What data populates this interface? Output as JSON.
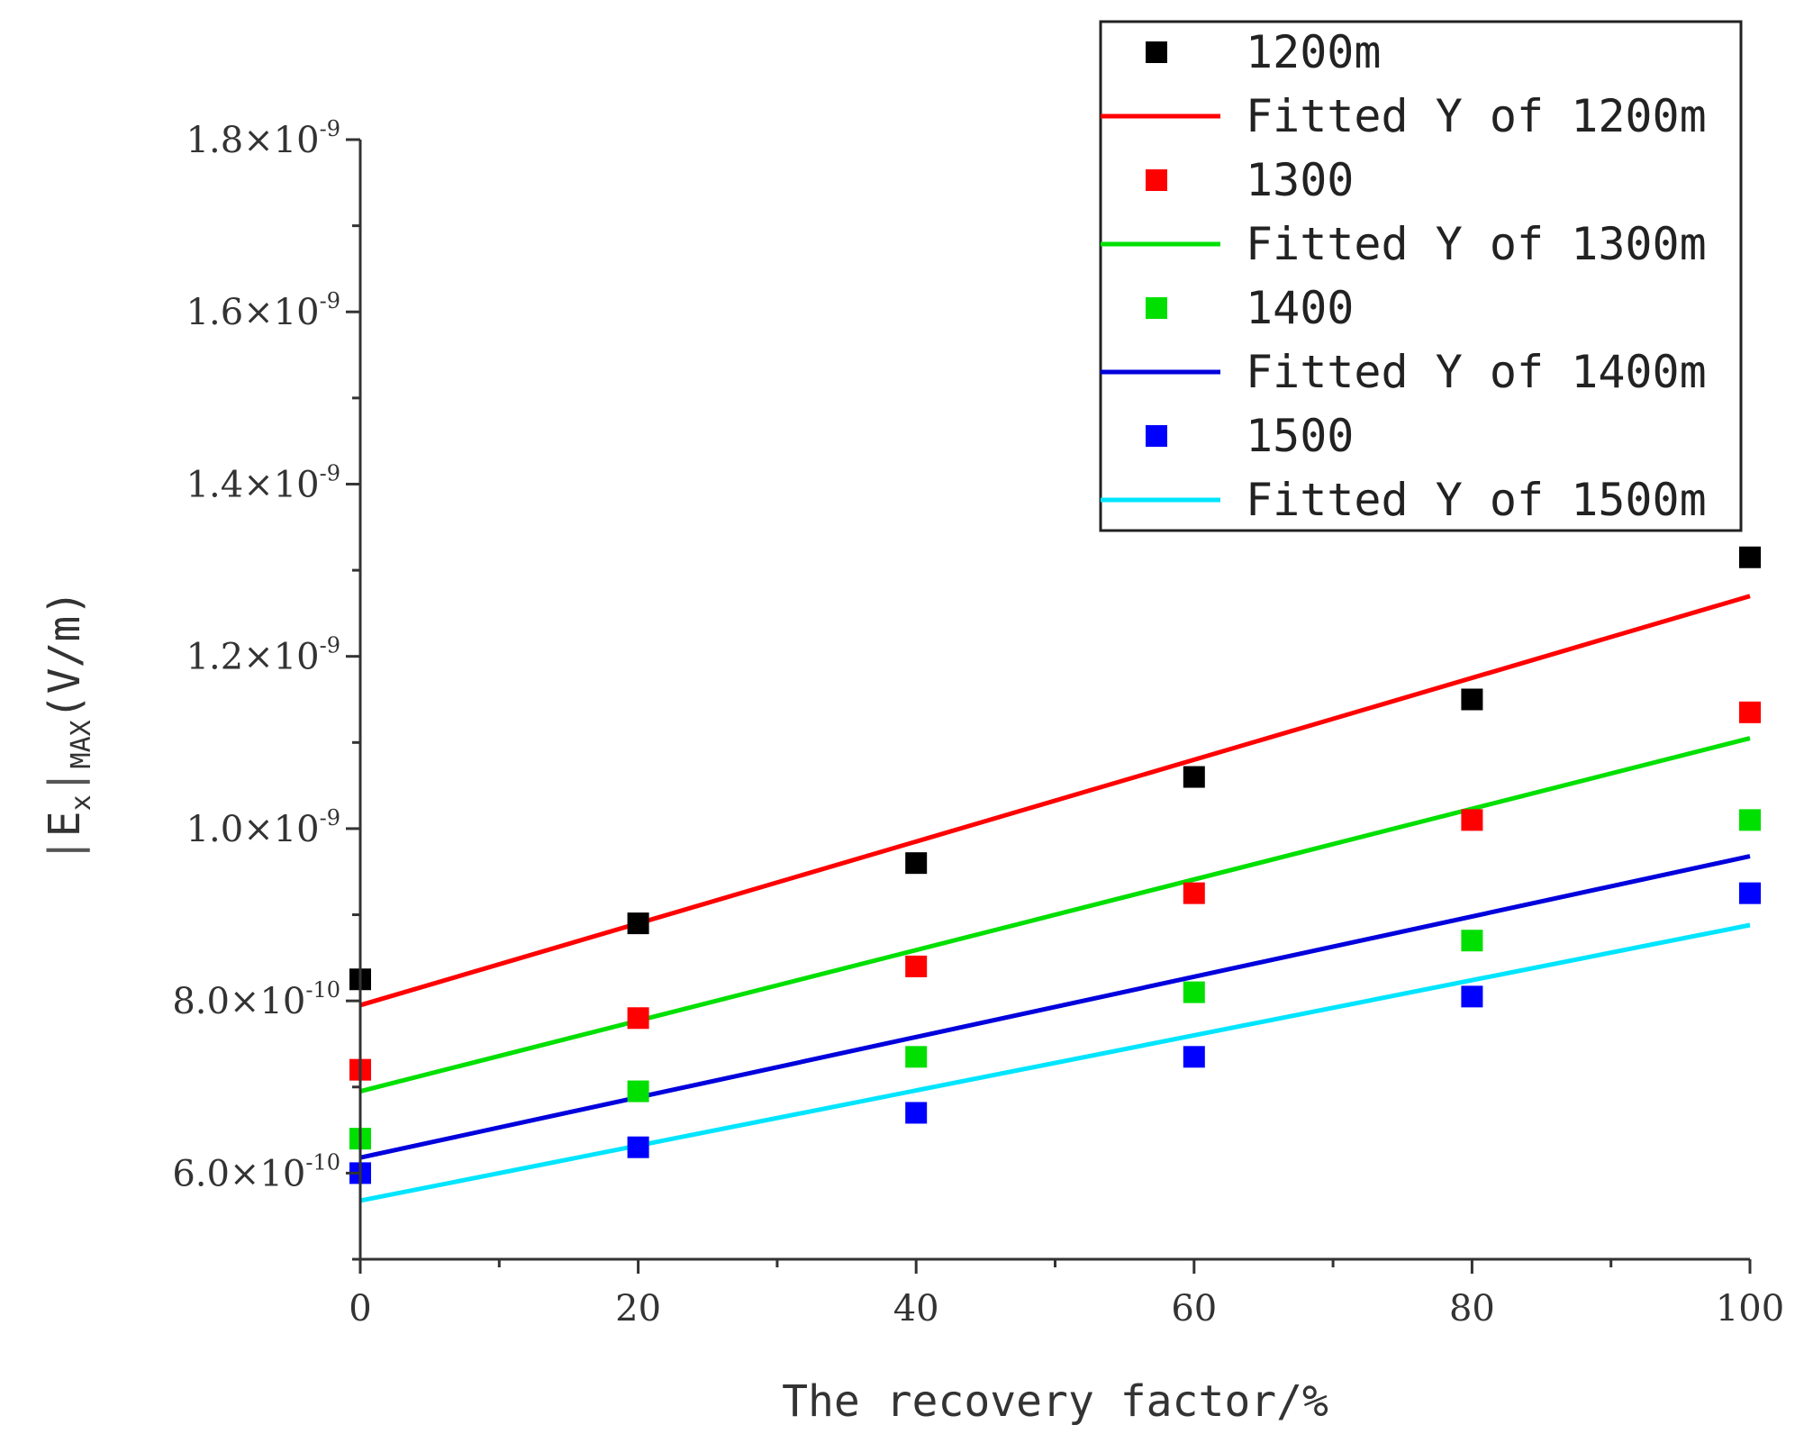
{
  "chart_data": {
    "type": "scatter",
    "title": "",
    "xlabel": "The recovery factor/%",
    "ylabel": {
      "main": "E",
      "sub_x": "x",
      "sub_max": "MAX",
      "unit": "(V/m)"
    },
    "xlim": [
      0,
      100
    ],
    "ylim": [
      5e-10,
      1.8e-09
    ],
    "x_ticks": [
      {
        "value": 0,
        "label": "0"
      },
      {
        "value": 20,
        "label": "20"
      },
      {
        "value": 40,
        "label": "40"
      },
      {
        "value": 60,
        "label": "60"
      },
      {
        "value": 80,
        "label": "80"
      },
      {
        "value": 100,
        "label": "100"
      }
    ],
    "x_minor_ticks": [
      10,
      30,
      50,
      70,
      90
    ],
    "y_ticks": [
      {
        "value": 6e-10,
        "mantissa": "6.0",
        "times": "×",
        "base": "10",
        "exp": "-10"
      },
      {
        "value": 8e-10,
        "mantissa": "8.0",
        "times": "×",
        "base": "10",
        "exp": "-10"
      },
      {
        "value": 1e-09,
        "mantissa": "1.0",
        "times": "×",
        "base": "10",
        "exp": "-9"
      },
      {
        "value": 1.2e-09,
        "mantissa": "1.2",
        "times": "×",
        "base": "10",
        "exp": "-9"
      },
      {
        "value": 1.4e-09,
        "mantissa": "1.4",
        "times": "×",
        "base": "10",
        "exp": "-9"
      },
      {
        "value": 1.6e-09,
        "mantissa": "1.6",
        "times": "×",
        "base": "10",
        "exp": "-9"
      },
      {
        "value": 1.8e-09,
        "mantissa": "1.8",
        "times": "×",
        "base": "10",
        "exp": "-9"
      }
    ],
    "y_minor_ticks": [
      5e-10,
      7e-10,
      9e-10,
      1.1e-09,
      1.3e-09,
      1.5e-09,
      1.7e-09
    ],
    "x": [
      0,
      20,
      40,
      60,
      80,
      100
    ],
    "series": [
      {
        "name": "1200m",
        "color": "#000000",
        "points": [
          8.25e-10,
          8.9e-10,
          9.6e-10,
          1.06e-09,
          1.15e-09,
          1.315e-09
        ],
        "fit": {
          "name": "Fitted Y of 1200m",
          "color": "#ff0000",
          "intercept": 7.95e-10,
          "slope": 4.75e-12
        }
      },
      {
        "name": "1300",
        "color": "#ff0000",
        "points": [
          7.2e-10,
          7.8e-10,
          8.4e-10,
          9.25e-10,
          1.01e-09,
          1.135e-09
        ],
        "fit": {
          "name": "Fitted Y of 1300m",
          "color": "#00e000",
          "intercept": 6.95e-10,
          "slope": 4.1e-12
        }
      },
      {
        "name": "1400",
        "color": "#00e000",
        "points": [
          6.4e-10,
          6.95e-10,
          7.35e-10,
          8.1e-10,
          8.7e-10,
          1.01e-09
        ],
        "fit": {
          "name": "Fitted Y of 1400m",
          "color": "#0000dd",
          "intercept": 6.18e-10,
          "slope": 3.5e-12
        }
      },
      {
        "name": "1500",
        "color": "#0000ff",
        "points": [
          6e-10,
          6.3e-10,
          6.7e-10,
          7.35e-10,
          8.05e-10,
          9.25e-10
        ],
        "fit": {
          "name": "Fitted Y of 1500m",
          "color": "#00e5ff",
          "intercept": 5.68e-10,
          "slope": 3.2e-12
        }
      }
    ],
    "legend": {
      "position": "top-right",
      "entries": [
        {
          "label": "1200m",
          "kind": "marker",
          "color": "#000000"
        },
        {
          "label": "Fitted Y of 1200m",
          "kind": "line",
          "color": "#ff0000"
        },
        {
          "label": "1300",
          "kind": "marker",
          "color": "#ff0000"
        },
        {
          "label": "Fitted Y of 1300m",
          "kind": "line",
          "color": "#00e000"
        },
        {
          "label": "1400",
          "kind": "marker",
          "color": "#00e000"
        },
        {
          "label": "Fitted Y of 1400m",
          "kind": "line",
          "color": "#0000dd"
        },
        {
          "label": "1500",
          "kind": "marker",
          "color": "#0000ff"
        },
        {
          "label": "Fitted Y of 1500m",
          "kind": "line",
          "color": "#00e5ff"
        }
      ]
    }
  }
}
